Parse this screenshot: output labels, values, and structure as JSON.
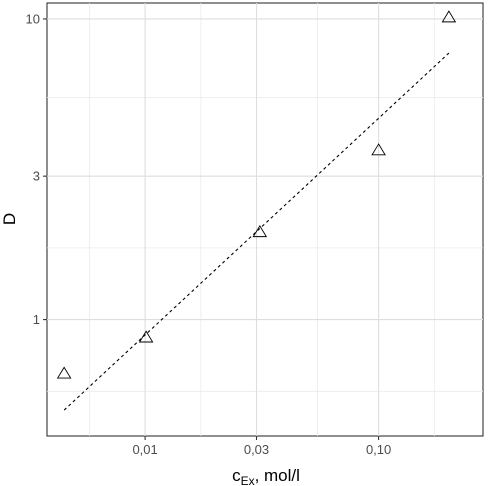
{
  "chart_data": {
    "type": "scatter",
    "title": "",
    "xlabel": {
      "base": "c",
      "subscript": "Ex",
      "suffix": ", mol/l"
    },
    "ylabel": "D",
    "x_scale": "log10",
    "y_scale": "log10",
    "xlim": [
      0.0038,
      0.28
    ],
    "ylim": [
      0.41,
      11.3
    ],
    "x_ticks": [
      {
        "value": 0.01,
        "label": "0,01"
      },
      {
        "value": 0.03,
        "label": "0,03"
      },
      {
        "value": 0.1,
        "label": "0,10"
      }
    ],
    "y_ticks": [
      {
        "value": 1,
        "label": "1"
      },
      {
        "value": 3,
        "label": "3"
      },
      {
        "value": 10,
        "label": "10"
      }
    ],
    "grid": true,
    "marker": "open-triangle",
    "points": [
      {
        "x": 0.0045,
        "y": 0.66
      },
      {
        "x": 0.0101,
        "y": 0.87
      },
      {
        "x": 0.031,
        "y": 1.95
      },
      {
        "x": 0.1,
        "y": 3.65
      },
      {
        "x": 0.2,
        "y": 10.1
      }
    ],
    "fit_line": {
      "style": "dashed",
      "from": {
        "x": 0.0045,
        "y": 0.5
      },
      "to": {
        "x": 0.2,
        "y": 7.7
      }
    }
  }
}
